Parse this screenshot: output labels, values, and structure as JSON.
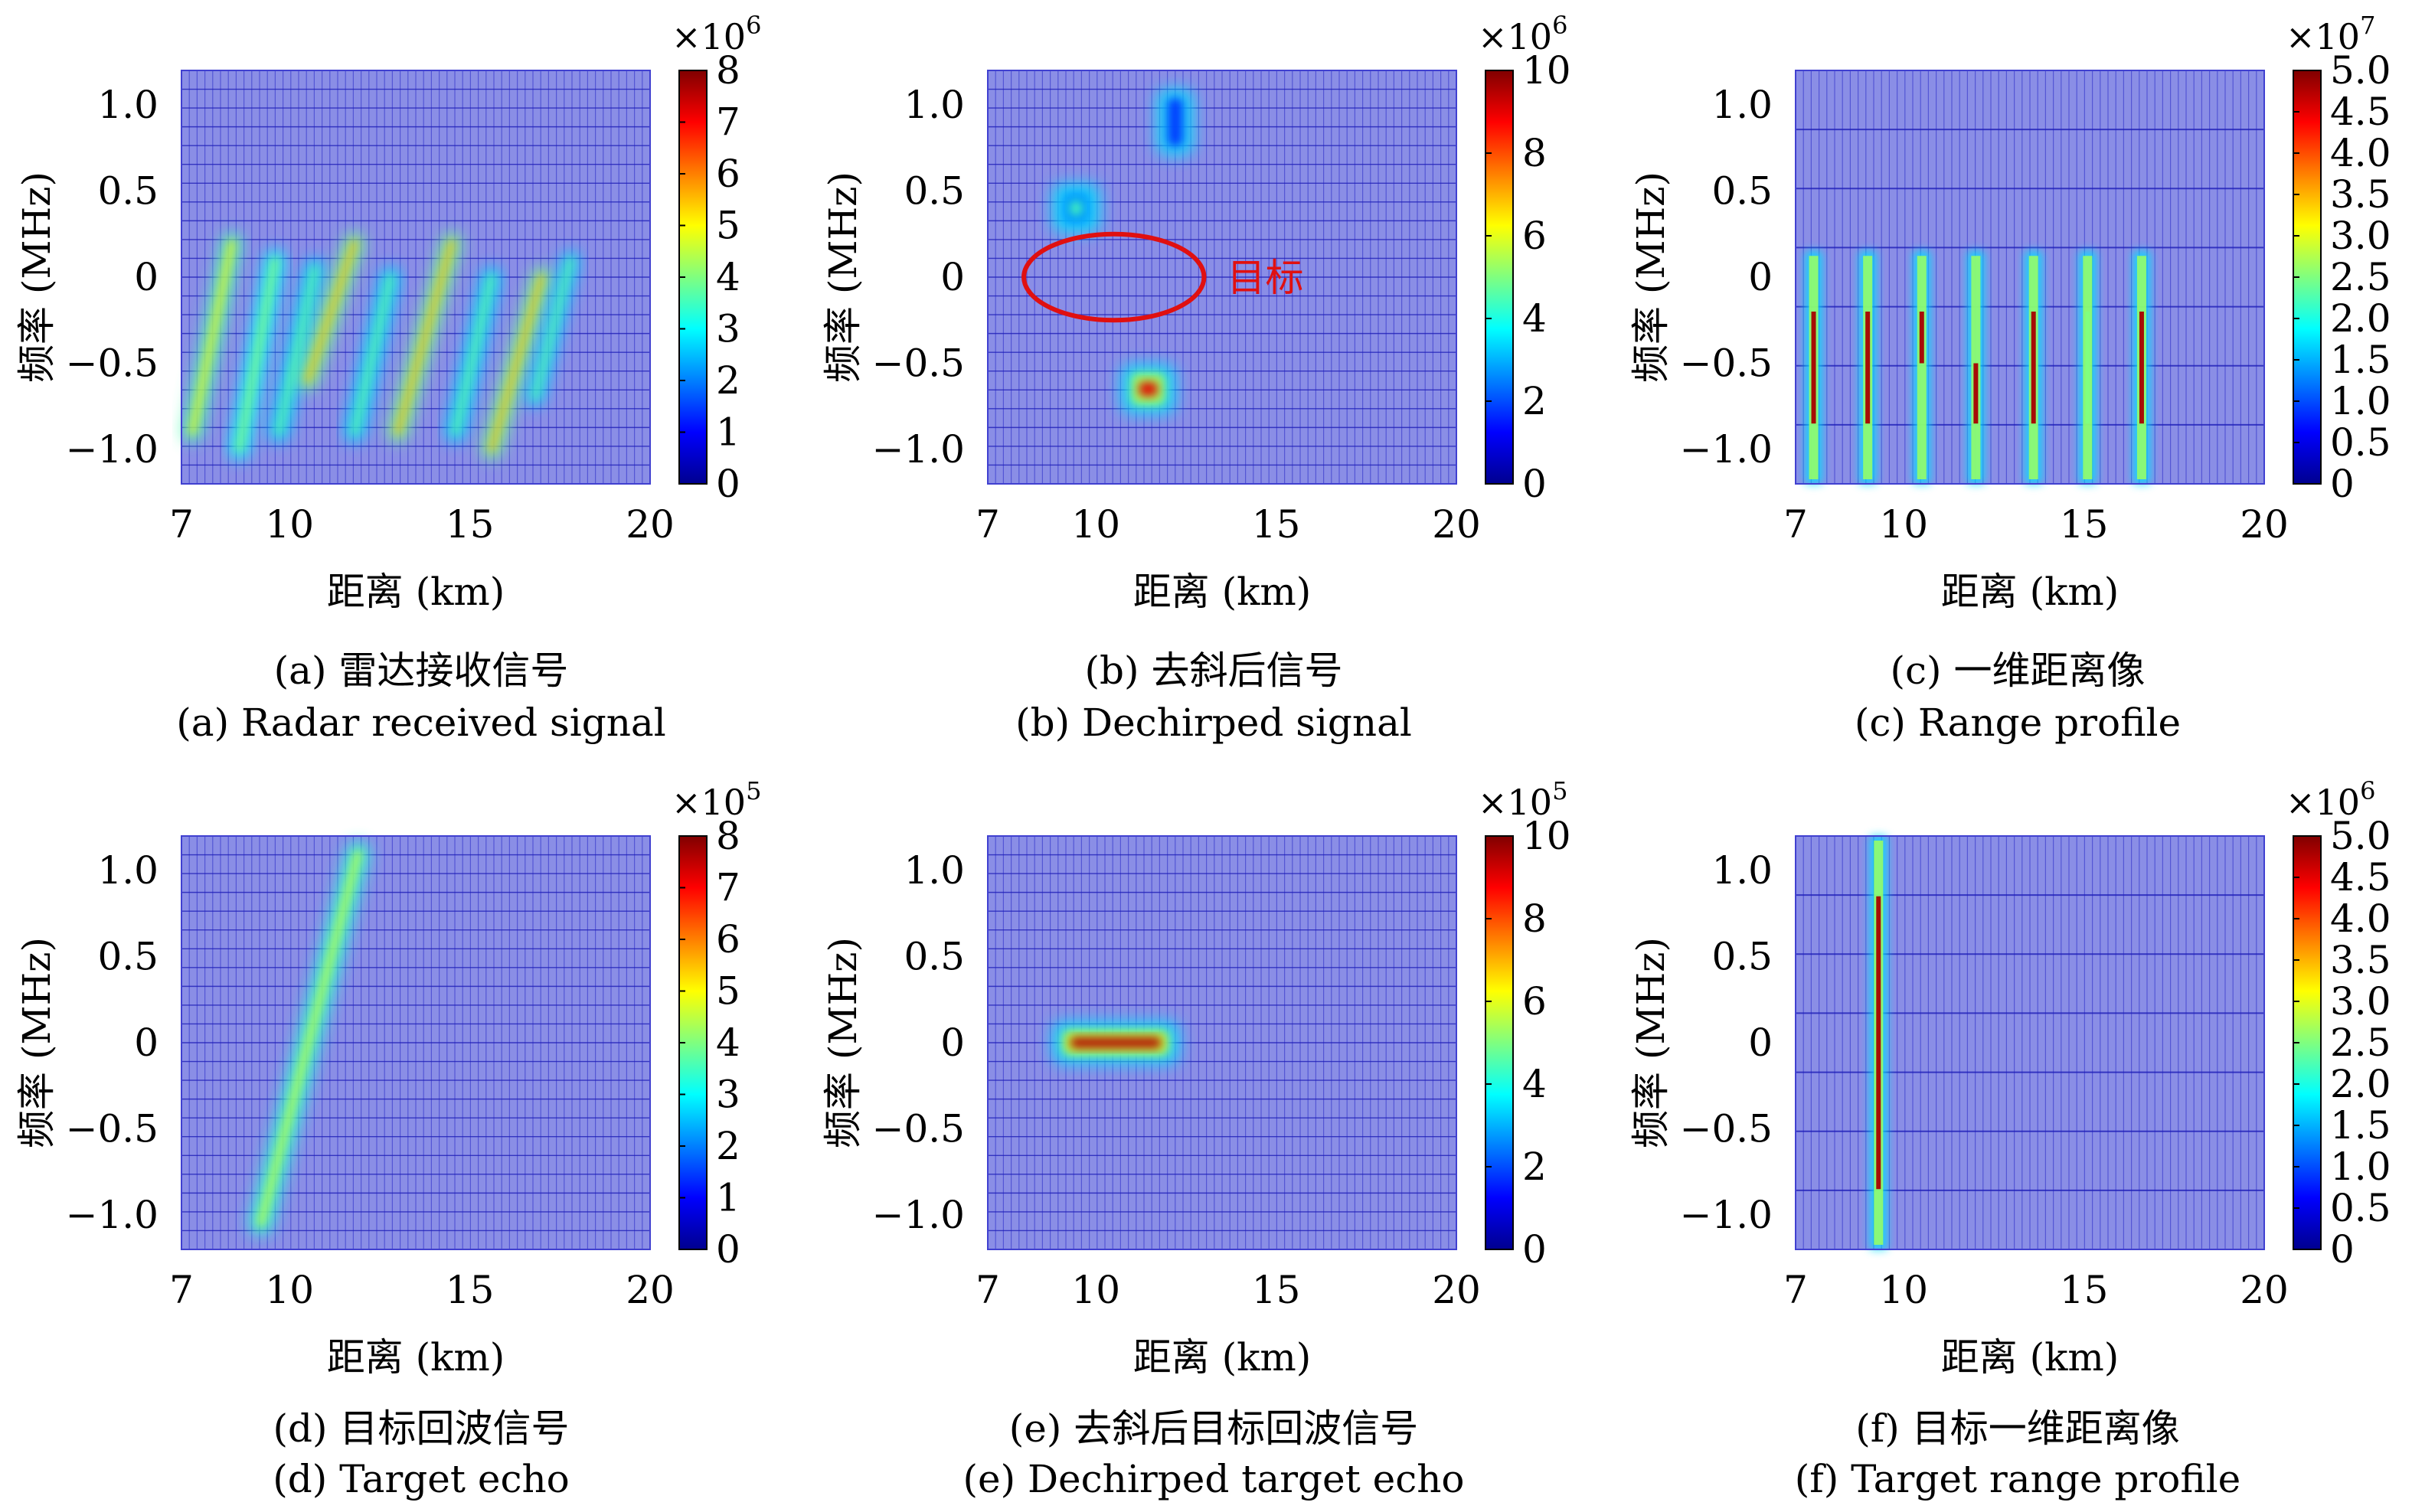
{
  "figure": {
    "panels": [
      {
        "caption_cn": "(a) 雷达接收信号",
        "caption_en": "(a) Radar received signal"
      },
      {
        "caption_cn": "(b) 去斜后信号",
        "caption_en": "(b) Dechirped signal"
      },
      {
        "caption_cn": "(c) 一维距离像",
        "caption_en": "(c) Range profile"
      },
      {
        "caption_cn": "(d) 目标回波信号",
        "caption_en": "(d) Target echo"
      },
      {
        "caption_cn": "(e) 去斜后目标回波信号",
        "caption_en": "(e) Dechirped target echo"
      },
      {
        "caption_cn": "(f) 目标一维距离像",
        "caption_en": "(f) Target range profile"
      }
    ]
  },
  "chart_data": [
    {
      "type": "heatmap",
      "id": "a",
      "xlabel": "距离 (km)",
      "ylabel": "频率 (MHz)",
      "xlim": [
        7,
        20
      ],
      "ylim": [
        -1.2,
        1.2
      ],
      "xticks": [
        "7",
        "10",
        "15",
        "20"
      ],
      "xtick_values": [
        7,
        10,
        15,
        20
      ],
      "yticks": [
        "1.0",
        "0.5",
        "0",
        "−0.5",
        "−1.0"
      ],
      "ytick_values": [
        1.0,
        0.5,
        0,
        -0.5,
        -1.0
      ],
      "colorbar": {
        "range": [
          0,
          8
        ],
        "ticks": [
          "8",
          "7",
          "6",
          "5",
          "4",
          "3",
          "2",
          "1",
          "0"
        ],
        "tick_values": [
          8,
          7,
          6,
          5,
          4,
          3,
          2,
          1,
          0
        ],
        "exponent": "×10",
        "exponent_power": "6"
      },
      "strokes": [
        {
          "x0": 7.3,
          "y0": -0.9,
          "x1": 8.4,
          "y1": 0.2,
          "width": 0.35,
          "peak": 6.0
        },
        {
          "x0": 8.6,
          "y0": -1.0,
          "x1": 9.6,
          "y1": 0.1,
          "width": 0.35,
          "peak": 5.0
        },
        {
          "x0": 9.7,
          "y0": -0.9,
          "x1": 10.7,
          "y1": 0.05,
          "width": 0.35,
          "peak": 4.5
        },
        {
          "x0": 10.5,
          "y0": -0.6,
          "x1": 11.8,
          "y1": 0.2,
          "width": 0.35,
          "peak": 6.5
        },
        {
          "x0": 11.8,
          "y0": -0.9,
          "x1": 12.8,
          "y1": 0.0,
          "width": 0.35,
          "peak": 4.5
        },
        {
          "x0": 13.0,
          "y0": -0.9,
          "x1": 14.5,
          "y1": 0.2,
          "width": 0.35,
          "peak": 6.5
        },
        {
          "x0": 14.6,
          "y0": -0.9,
          "x1": 15.6,
          "y1": 0.0,
          "width": 0.35,
          "peak": 4.5
        },
        {
          "x0": 15.6,
          "y0": -1.0,
          "x1": 17.0,
          "y1": 0.0,
          "width": 0.35,
          "peak": 6.5
        },
        {
          "x0": 16.8,
          "y0": -0.7,
          "x1": 17.8,
          "y1": 0.1,
          "width": 0.3,
          "peak": 4.5
        }
      ]
    },
    {
      "type": "heatmap",
      "id": "b",
      "xlabel": "距离 (km)",
      "ylabel": "频率 (MHz)",
      "xlim": [
        7,
        20
      ],
      "ylim": [
        -1.2,
        1.2
      ],
      "xticks": [
        "7",
        "10",
        "15",
        "20"
      ],
      "xtick_values": [
        7,
        10,
        15,
        20
      ],
      "yticks": [
        "1.0",
        "0.5",
        "0",
        "−0.5",
        "−1.0"
      ],
      "ytick_values": [
        1.0,
        0.5,
        0,
        -0.5,
        -1.0
      ],
      "colorbar": {
        "range": [
          0,
          10
        ],
        "ticks": [
          "10",
          "8",
          "6",
          "4",
          "2",
          "0"
        ],
        "tick_values": [
          10,
          8,
          6,
          4,
          2,
          0
        ],
        "exponent": "×10",
        "exponent_power": "6"
      },
      "blobs": [
        {
          "x0": 11.9,
          "x1": 12.5,
          "y0": 0.75,
          "y1": 1.05,
          "peak": 3.0
        },
        {
          "x0": 9.0,
          "x1": 9.9,
          "y0": 0.3,
          "y1": 0.5,
          "peak": 4.5
        },
        {
          "x0": 10.9,
          "x1": 12.0,
          "y0": -0.75,
          "y1": -0.55,
          "peak": 9.0
        }
      ],
      "annotation": {
        "text": "目标",
        "center": [
          10.5,
          0.0
        ],
        "rx": 2.5,
        "ry": 0.25
      }
    },
    {
      "type": "heatmap",
      "id": "c",
      "xlabel": "距离 (km)",
      "ylabel": "频率 (MHz)",
      "xlim": [
        7,
        20
      ],
      "ylim": [
        -1.2,
        1.2
      ],
      "xticks": [
        "7",
        "10",
        "15",
        "20"
      ],
      "xtick_values": [
        7,
        10,
        15,
        20
      ],
      "yticks": [
        "1.0",
        "0.5",
        "0",
        "−0.5",
        "−1.0"
      ],
      "ytick_values": [
        1.0,
        0.5,
        0,
        -0.5,
        -1.0
      ],
      "colorbar": {
        "range": [
          0,
          5.0
        ],
        "ticks": [
          "5.0",
          "4.5",
          "4.0",
          "3.5",
          "3.0",
          "2.5",
          "2.0",
          "1.5",
          "1.0",
          "0.5",
          "0"
        ],
        "tick_values": [
          5.0,
          4.5,
          4.0,
          3.5,
          3.0,
          2.5,
          2.0,
          1.5,
          1.0,
          0.5,
          0
        ],
        "exponent": "×10",
        "exponent_power": "7"
      },
      "lines": [
        {
          "x": 7.5,
          "y0": -1.2,
          "y1": 0.15,
          "core_y0": -0.85,
          "core_y1": -0.2,
          "peak": 4.8
        },
        {
          "x": 9.0,
          "y0": -1.2,
          "y1": 0.15,
          "core_y0": -0.85,
          "core_y1": -0.2,
          "peak": 4.8
        },
        {
          "x": 10.5,
          "y0": -1.2,
          "y1": 0.15,
          "core_y0": -0.5,
          "core_y1": -0.2,
          "peak": 4.8
        },
        {
          "x": 12.0,
          "y0": -1.2,
          "y1": 0.15,
          "core_y0": -0.85,
          "core_y1": -0.5,
          "peak": 4.8
        },
        {
          "x": 13.6,
          "y0": -1.2,
          "y1": 0.15,
          "core_y0": -0.85,
          "core_y1": -0.2,
          "peak": 4.8
        },
        {
          "x": 15.1,
          "y0": -1.2,
          "y1": 0.15,
          "core_y0": -0.85,
          "core_y1": -0.2,
          "peak": 2.5
        },
        {
          "x": 16.6,
          "y0": -1.2,
          "y1": 0.15,
          "core_y0": -0.85,
          "core_y1": -0.2,
          "peak": 4.8
        }
      ]
    },
    {
      "type": "heatmap",
      "id": "d",
      "xlabel": "距离 (km)",
      "ylabel": "频率 (MHz)",
      "xlim": [
        7,
        20
      ],
      "ylim": [
        -1.2,
        1.2
      ],
      "xticks": [
        "7",
        "10",
        "15",
        "20"
      ],
      "xtick_values": [
        7,
        10,
        15,
        20
      ],
      "yticks": [
        "1.0",
        "0.5",
        "0",
        "−0.5",
        "−1.0"
      ],
      "ytick_values": [
        1.0,
        0.5,
        0,
        -0.5,
        -1.0
      ],
      "colorbar": {
        "range": [
          0,
          8
        ],
        "ticks": [
          "8",
          "7",
          "6",
          "5",
          "4",
          "3",
          "2",
          "1",
          "0"
        ],
        "tick_values": [
          8,
          7,
          6,
          5,
          4,
          3,
          2,
          1,
          0
        ],
        "exponent": "×10",
        "exponent_power": "5"
      },
      "strokes": [
        {
          "x0": 9.2,
          "y0": -1.05,
          "x1": 11.9,
          "y1": 1.1,
          "width": 0.4,
          "peak": 5.5
        }
      ]
    },
    {
      "type": "heatmap",
      "id": "e",
      "xlabel": "距离 (km)",
      "ylabel": "频率 (MHz)",
      "xlim": [
        7,
        20
      ],
      "ylim": [
        -1.2,
        1.2
      ],
      "xticks": [
        "7",
        "10",
        "15",
        "20"
      ],
      "xtick_values": [
        7,
        10,
        15,
        20
      ],
      "yticks": [
        "1.0",
        "0.5",
        "0",
        "−0.5",
        "−1.0"
      ],
      "ytick_values": [
        1.0,
        0.5,
        0,
        -0.5,
        -1.0
      ],
      "colorbar": {
        "range": [
          0,
          10
        ],
        "ticks": [
          "10",
          "8",
          "6",
          "4",
          "2",
          "0"
        ],
        "tick_values": [
          10,
          8,
          6,
          4,
          2,
          0
        ],
        "exponent": "×10",
        "exponent_power": "5"
      },
      "blobs": [
        {
          "x0": 9.0,
          "x1": 12.1,
          "y0": -0.08,
          "y1": 0.08,
          "peak": 9.5
        }
      ]
    },
    {
      "type": "heatmap",
      "id": "f",
      "xlabel": "距离 (km)",
      "ylabel": "频率 (MHz)",
      "xlim": [
        7,
        20
      ],
      "ylim": [
        -1.2,
        1.2
      ],
      "xticks": [
        "7",
        "10",
        "15",
        "20"
      ],
      "xtick_values": [
        7,
        10,
        15,
        20
      ],
      "yticks": [
        "1.0",
        "0.5",
        "0",
        "−0.5",
        "−1.0"
      ],
      "ytick_values": [
        1.0,
        0.5,
        0,
        -0.5,
        -1.0
      ],
      "colorbar": {
        "range": [
          0,
          5.0
        ],
        "ticks": [
          "5.0",
          "4.5",
          "4.0",
          "3.5",
          "3.0",
          "2.5",
          "2.0",
          "1.5",
          "1.0",
          "0.5",
          "0"
        ],
        "tick_values": [
          5.0,
          4.5,
          4.0,
          3.5,
          3.0,
          2.5,
          2.0,
          1.5,
          1.0,
          0.5,
          0
        ],
        "exponent": "×10",
        "exponent_power": "6"
      },
      "lines": [
        {
          "x": 9.3,
          "y0": -1.2,
          "y1": 1.2,
          "core_y0": -0.85,
          "core_y1": 0.85,
          "peak": 4.8
        }
      ]
    }
  ]
}
